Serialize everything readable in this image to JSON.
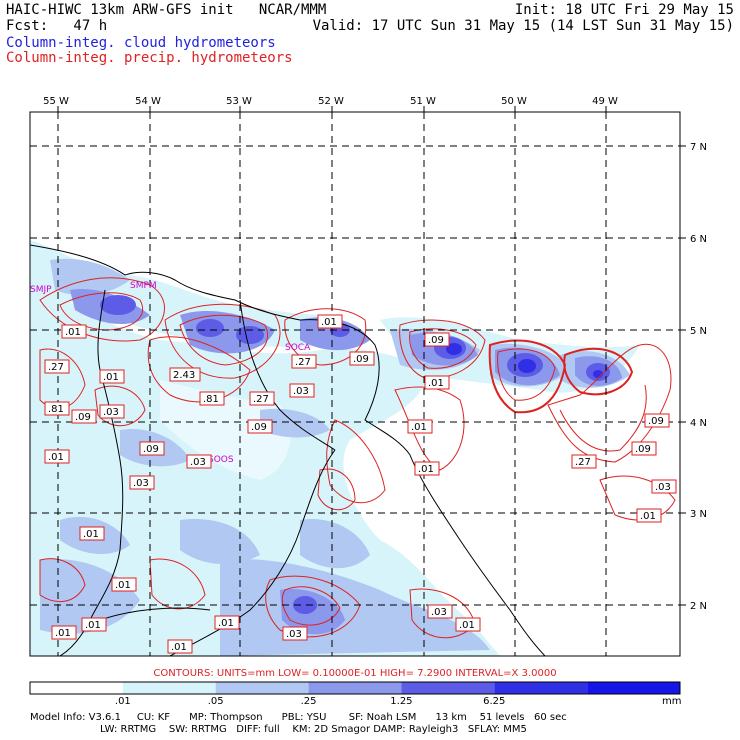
{
  "header": {
    "line1_left": "HAIC-HIWC 13km ARW-GFS init   NCAR/MMM",
    "line1_right": "Init: 18 UTC Fri 29 May 15",
    "line2_left": "Fcst:   47 h",
    "line2_right": "Valid: 17 UTC Sun 31 May 15 (14 LST Sun 31 May 15)",
    "field1": "Column-integ. cloud hydrometeors",
    "field2": "Column-integ. precip. hydrometeors"
  },
  "lon_labels": [
    "55 W",
    "54 W",
    "53 W",
    "52 W",
    "51 W",
    "50 W",
    "49 W"
  ],
  "lat_labels": [
    "7 N",
    "6 N",
    "5 N",
    "4 N",
    "3 N",
    "2 N"
  ],
  "stations": [
    "SMJP",
    "SMPM",
    "SOCA",
    "SOOS"
  ],
  "contour_labels": [
    ".01",
    ".27",
    ".81",
    ".01",
    ".03",
    ".09",
    ".01",
    "2.43",
    ".81",
    ".27",
    ".03",
    ".09",
    ".09",
    ".03",
    ".03",
    ".01",
    ".27",
    ".09",
    ".01",
    ".09",
    ".01",
    ".01",
    ".09",
    ".01",
    ".27",
    ".09",
    ".03",
    ".01",
    ".01",
    ".01",
    ".01",
    ".01",
    ".01",
    ".03",
    ".03",
    ".01"
  ],
  "contour_info": "CONTOURS:  UNITS=mm  LOW= 0.10000E-01  HIGH=  7.2900      INTERVAL=X  3.0000",
  "colorbar": {
    "labels": [
      ".01",
      ".05",
      ".25",
      "1.25",
      "6.25"
    ],
    "units": "mm",
    "colors": [
      "#ffffff",
      "#d8f4fb",
      "#b0c8f2",
      "#8c98ec",
      "#5c5ce6",
      "#2f2fe6",
      "#1515ea"
    ]
  },
  "footer": {
    "line1": "Model Info: V3.6.1     CU: KF      MP: Thompson      PBL: YSU       SF: Noah LSM      13 km    51 levels   60 sec",
    "line2": "LW: RRTMG    SW: RRTMG   DIFF: full    KM: 2D Smagor DAMP: Rayleigh3   SFLAY: MM5"
  }
}
